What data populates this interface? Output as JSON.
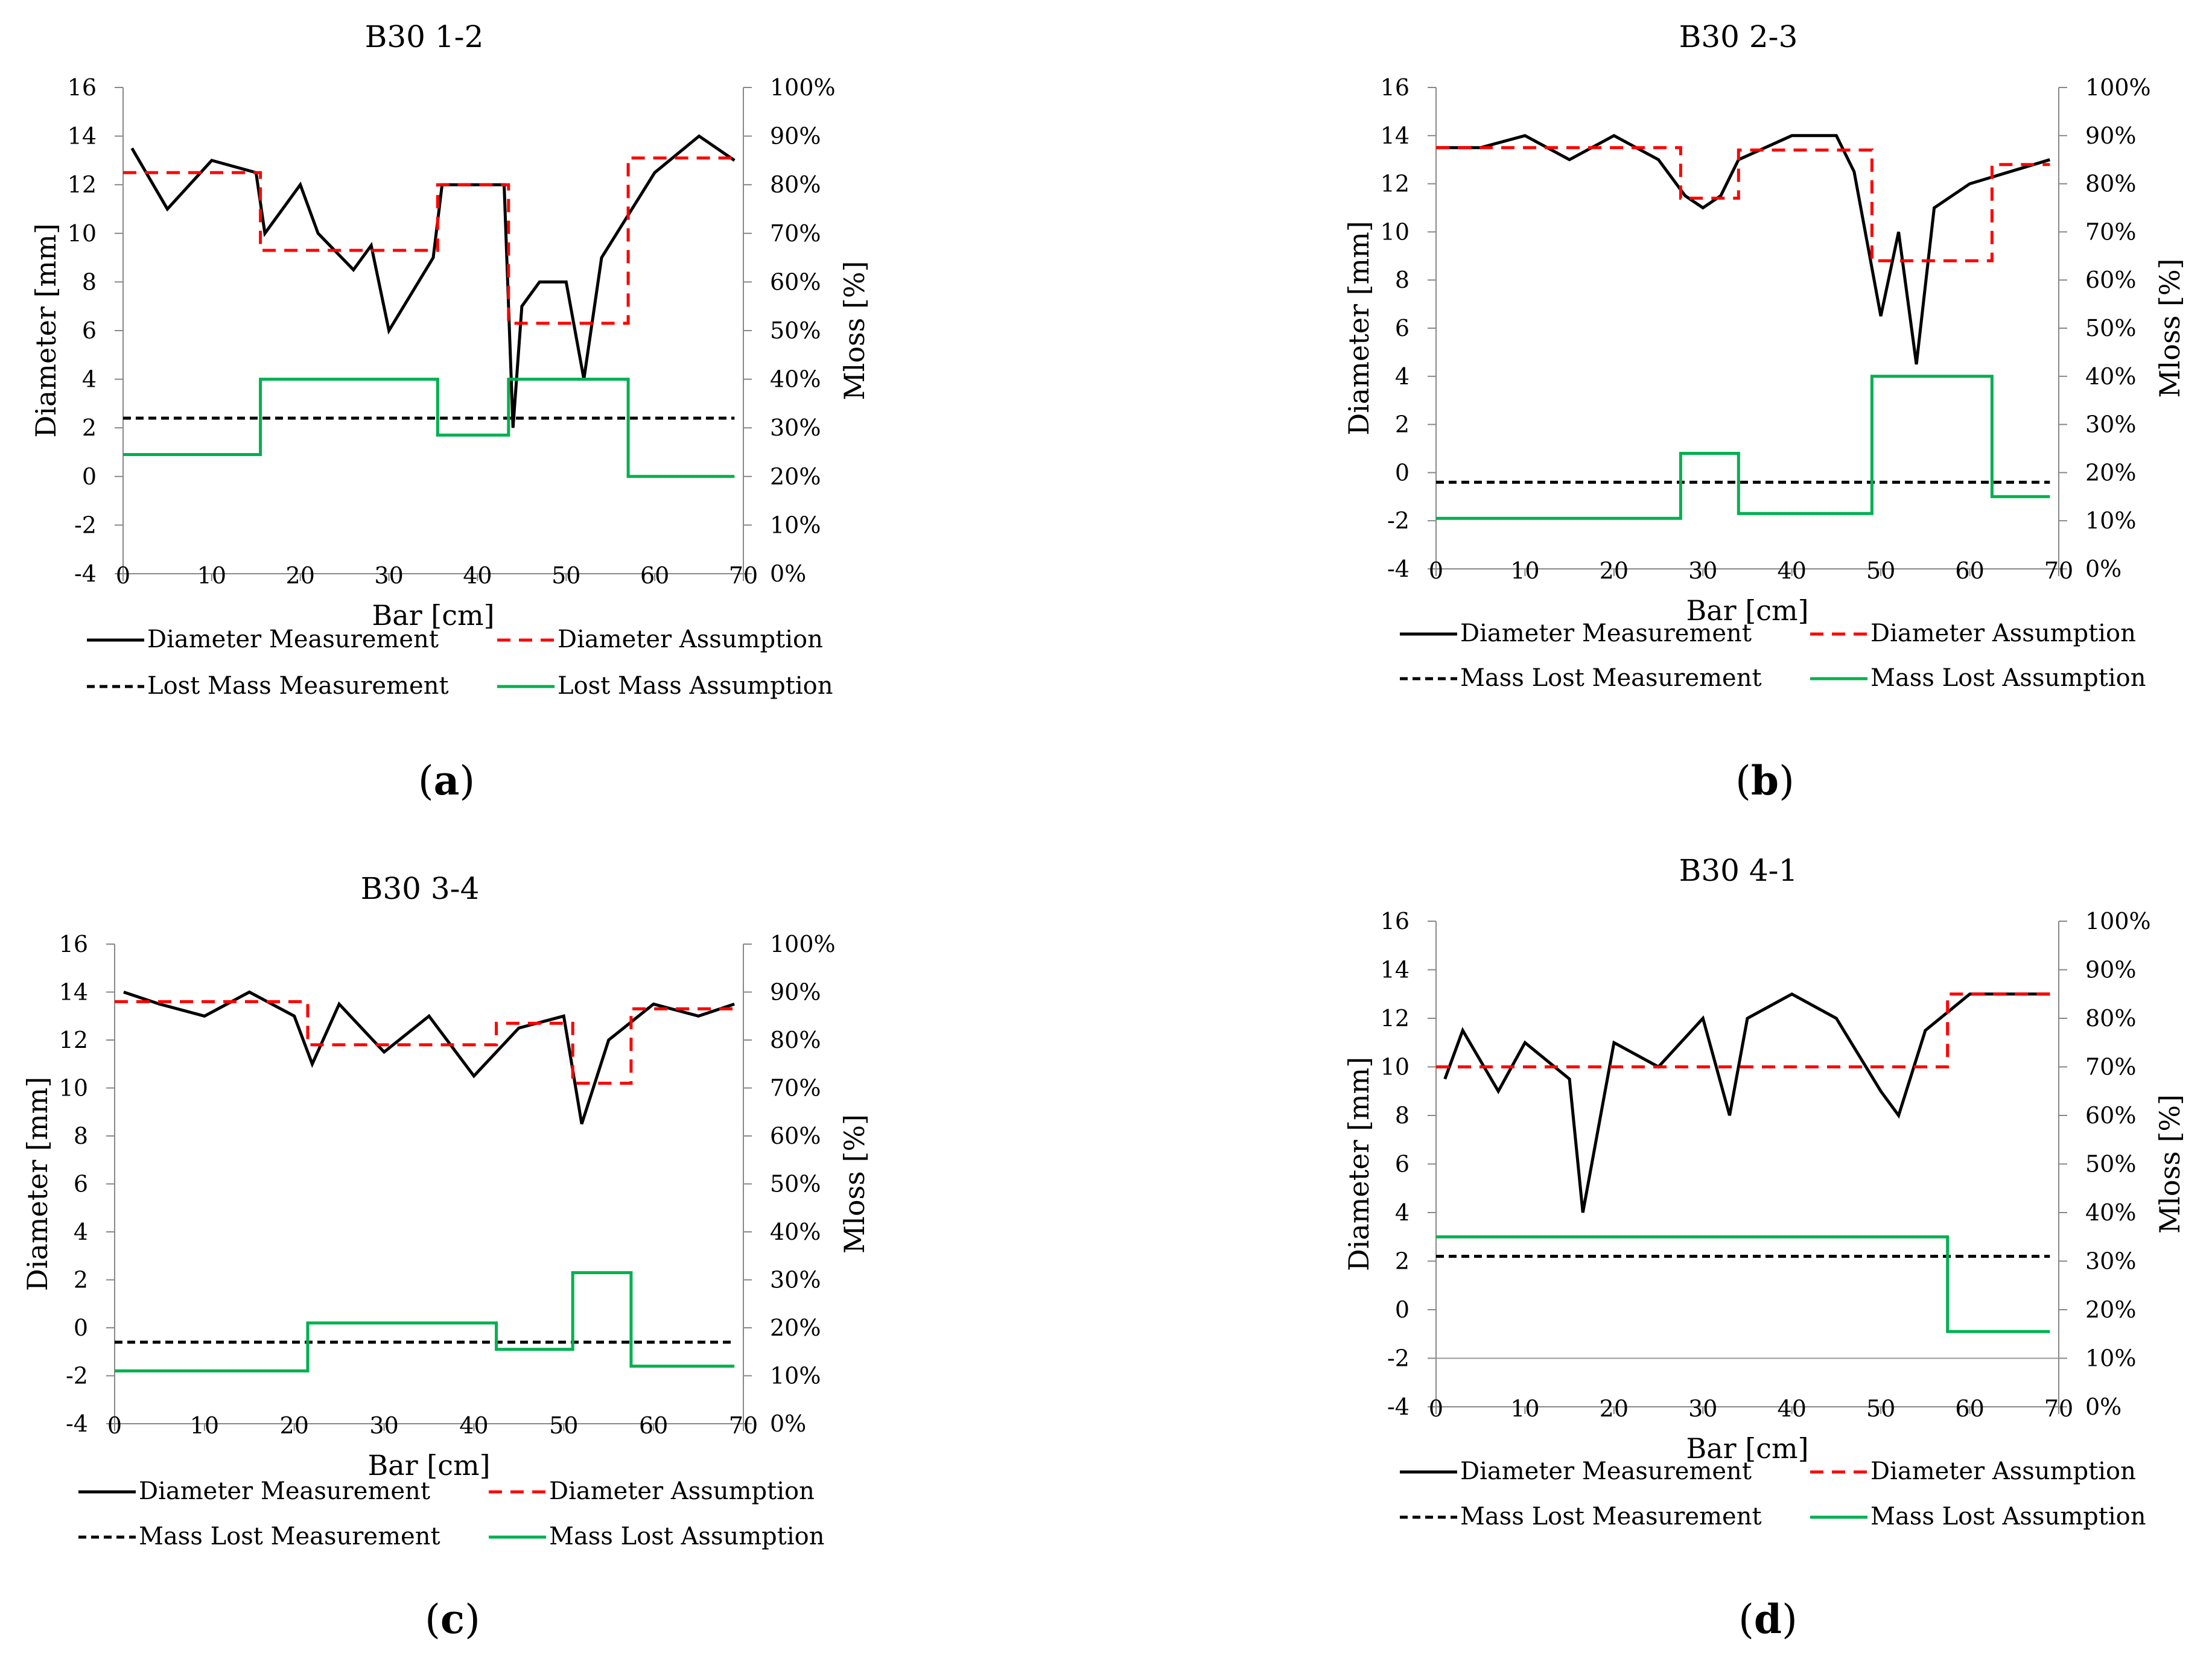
{
  "chart_data": [
    {
      "type": "line",
      "panel": "a",
      "caption": [
        "(",
        "a",
        ")"
      ],
      "title": "B30 1-2",
      "xlabel": "Bar [cm]",
      "ylabel": "Diameter [mm]",
      "y2label": "Mloss [%]",
      "xlim": [
        0,
        70
      ],
      "ylim": [
        -4,
        16
      ],
      "y2lim": [
        0,
        100
      ],
      "xticks": [
        "0",
        "10",
        "20",
        "30",
        "40",
        "50",
        "60",
        "70"
      ],
      "yticks": [
        "-4",
        "-2",
        "0",
        "2",
        "4",
        "6",
        "8",
        "10",
        "12",
        "14",
        "16"
      ],
      "y2ticks": [
        "0%",
        "10%",
        "20%",
        "30%",
        "40%",
        "50%",
        "60%",
        "70%",
        "80%",
        "90%",
        "100%"
      ],
      "series": [
        {
          "name": "Diameter Measurement",
          "axis": "left",
          "style": "solid-black",
          "x": [
            1,
            5,
            10,
            15,
            16,
            20,
            22,
            26,
            28,
            30,
            35,
            36,
            43,
            44,
            45,
            47,
            50,
            52,
            54,
            60,
            65,
            69
          ],
          "y": [
            13.5,
            11,
            13,
            12.5,
            10,
            12,
            10,
            8.5,
            9.5,
            6,
            9,
            12,
            12,
            2,
            7,
            8,
            8,
            4,
            9,
            12.5,
            14,
            13
          ]
        },
        {
          "name": "Diameter Assumption",
          "axis": "left",
          "style": "dashed-red",
          "x": [
            0,
            15.5,
            15.5,
            35.5,
            35.5,
            43.5,
            43.5,
            57,
            57,
            69
          ],
          "y": [
            12.5,
            12.5,
            9.3,
            9.3,
            12,
            12,
            6.3,
            6.3,
            13.1,
            13.1
          ]
        },
        {
          "name": "Lost Mass Measurement",
          "axis": "right",
          "style": "dashed-black",
          "x": [
            0,
            69
          ],
          "y": [
            32,
            32
          ]
        },
        {
          "name": "Lost Mass Assumption",
          "axis": "right",
          "style": "solid-green",
          "x": [
            0,
            15.5,
            15.5,
            35.5,
            35.5,
            43.5,
            43.5,
            57,
            57,
            69
          ],
          "y": [
            24.5,
            24.5,
            40,
            40,
            28.5,
            28.5,
            40,
            40,
            20,
            20
          ]
        }
      ]
    },
    {
      "type": "line",
      "panel": "b",
      "caption": [
        "(",
        "b",
        ")"
      ],
      "title": "B30 2-3",
      "xlabel": "Bar [cm]",
      "ylabel": "Diameter [mm]",
      "y2label": "Mloss [%]",
      "xlim": [
        0,
        70
      ],
      "ylim": [
        -4,
        16
      ],
      "y2lim": [
        0,
        100
      ],
      "xticks": [
        "0",
        "10",
        "20",
        "30",
        "40",
        "50",
        "60",
        "70"
      ],
      "yticks": [
        "-4",
        "-2",
        "0",
        "2",
        "4",
        "6",
        "8",
        "10",
        "12",
        "14",
        "16"
      ],
      "y2ticks": [
        "0%",
        "10%",
        "20%",
        "30%",
        "40%",
        "50%",
        "60%",
        "70%",
        "80%",
        "90%",
        "100%"
      ],
      "series": [
        {
          "name": "Diameter Measurement",
          "axis": "left",
          "style": "solid-black",
          "x": [
            0,
            5,
            10,
            15,
            20,
            25,
            28,
            30,
            32,
            34,
            40,
            45,
            47,
            50,
            52,
            54,
            56,
            60,
            69
          ],
          "y": [
            13.5,
            13.5,
            14,
            13,
            14,
            13,
            11.5,
            11,
            11.5,
            13,
            14,
            14,
            12.5,
            6.5,
            10,
            4.5,
            11,
            12,
            13
          ]
        },
        {
          "name": "Diameter Assumption",
          "axis": "left",
          "style": "dashed-red",
          "x": [
            0,
            27.5,
            27.5,
            34,
            34,
            49,
            49,
            62.5,
            62.5,
            69
          ],
          "y": [
            13.5,
            13.5,
            11.4,
            11.4,
            13.4,
            13.4,
            8.8,
            8.8,
            12.8,
            12.8
          ]
        },
        {
          "name": "Mass Lost Measurement",
          "axis": "right",
          "style": "dashed-black",
          "x": [
            0,
            69
          ],
          "y": [
            18,
            18
          ]
        },
        {
          "name": "Mass Lost Assumption",
          "axis": "right",
          "style": "solid-green",
          "x": [
            0,
            27.5,
            27.5,
            34,
            34,
            49,
            49,
            62.5,
            62.5,
            69
          ],
          "y": [
            10.5,
            10.5,
            24,
            24,
            11.5,
            11.5,
            40,
            40,
            15,
            15
          ]
        }
      ]
    },
    {
      "type": "line",
      "panel": "c",
      "caption": [
        "(",
        "c",
        ")"
      ],
      "title": "B30 3-4",
      "xlabel": "Bar [cm]",
      "ylabel": "Diameter [mm]",
      "y2label": "Mloss [%]",
      "xlim": [
        0,
        70
      ],
      "ylim": [
        -4,
        16
      ],
      "y2lim": [
        0,
        100
      ],
      "xticks": [
        "0",
        "10",
        "20",
        "30",
        "40",
        "50",
        "60",
        "70"
      ],
      "yticks": [
        "-4",
        "-2",
        "0",
        "2",
        "4",
        "6",
        "8",
        "10",
        "12",
        "14",
        "16"
      ],
      "y2ticks": [
        "0%",
        "10%",
        "20%",
        "30%",
        "40%",
        "50%",
        "60%",
        "70%",
        "80%",
        "90%",
        "100%"
      ],
      "series": [
        {
          "name": "Diameter Measurement",
          "axis": "left",
          "style": "solid-black",
          "x": [
            1,
            5,
            10,
            15,
            20,
            22,
            25,
            30,
            35,
            40,
            45,
            50,
            52,
            55,
            60,
            65,
            69
          ],
          "y": [
            14,
            13.5,
            13,
            14,
            13,
            11,
            13.5,
            11.5,
            13,
            10.5,
            12.5,
            13,
            8.5,
            12,
            13.5,
            13,
            13.5
          ]
        },
        {
          "name": "Diameter Assumption",
          "axis": "left",
          "style": "dashed-red",
          "x": [
            0,
            21.5,
            21.5,
            42.5,
            42.5,
            51,
            51,
            57.5,
            57.5,
            69
          ],
          "y": [
            13.6,
            13.6,
            11.8,
            11.8,
            12.7,
            12.7,
            10.2,
            10.2,
            13.3,
            13.3
          ]
        },
        {
          "name": "Mass Lost Measurement",
          "axis": "right",
          "style": "dashed-black",
          "x": [
            0,
            69
          ],
          "y": [
            17,
            17
          ]
        },
        {
          "name": "Mass Lost Assumption",
          "axis": "right",
          "style": "solid-green",
          "x": [
            0,
            21.5,
            21.5,
            42.5,
            42.5,
            51,
            51,
            57.5,
            57.5,
            69
          ],
          "y": [
            11,
            11,
            21,
            21,
            15.5,
            15.5,
            31.5,
            31.5,
            12,
            12
          ]
        }
      ]
    },
    {
      "type": "line",
      "panel": "d",
      "caption": [
        "(",
        "d",
        ")"
      ],
      "title": "B30 4-1",
      "xlabel": "Bar [cm]",
      "ylabel": "Diameter [mm]",
      "y2label": "Mloss [%]",
      "xlim": [
        0,
        70
      ],
      "ylim": [
        -4,
        16
      ],
      "y2lim": [
        0,
        100
      ],
      "xticks": [
        "0",
        "10",
        "20",
        "30",
        "40",
        "50",
        "60",
        "70"
      ],
      "yticks": [
        "-4",
        "-2",
        "0",
        "2",
        "4",
        "6",
        "8",
        "10",
        "12",
        "14",
        "16"
      ],
      "y2ticks": [
        "0%",
        "10%",
        "20%",
        "30%",
        "40%",
        "50%",
        "60%",
        "70%",
        "80%",
        "90%",
        "100%"
      ],
      "series": [
        {
          "name": "Diameter Measurement",
          "axis": "left",
          "style": "solid-black",
          "x": [
            1,
            3,
            7,
            10,
            15,
            16.5,
            20,
            25,
            30,
            33,
            35,
            40,
            45,
            50,
            52,
            55,
            60,
            69
          ],
          "y": [
            9.5,
            11.5,
            9,
            11,
            9.5,
            4,
            11,
            10,
            12,
            8,
            12,
            13,
            12,
            9,
            8,
            11.5,
            13,
            13
          ]
        },
        {
          "name": "Diameter Assumption",
          "axis": "left",
          "style": "dashed-red",
          "x": [
            0,
            57.5,
            57.5,
            69
          ],
          "y": [
            10,
            10,
            13,
            13
          ]
        },
        {
          "name": "Mass Lost Measurement",
          "axis": "right",
          "style": "dashed-black",
          "x": [
            0,
            69
          ],
          "y": [
            31,
            31
          ]
        },
        {
          "name": "Mass Lost Assumption",
          "axis": "right",
          "style": "solid-green",
          "x": [
            0,
            57.5,
            57.5,
            69
          ],
          "y": [
            35,
            35,
            15.5,
            15.5
          ]
        }
      ]
    }
  ]
}
